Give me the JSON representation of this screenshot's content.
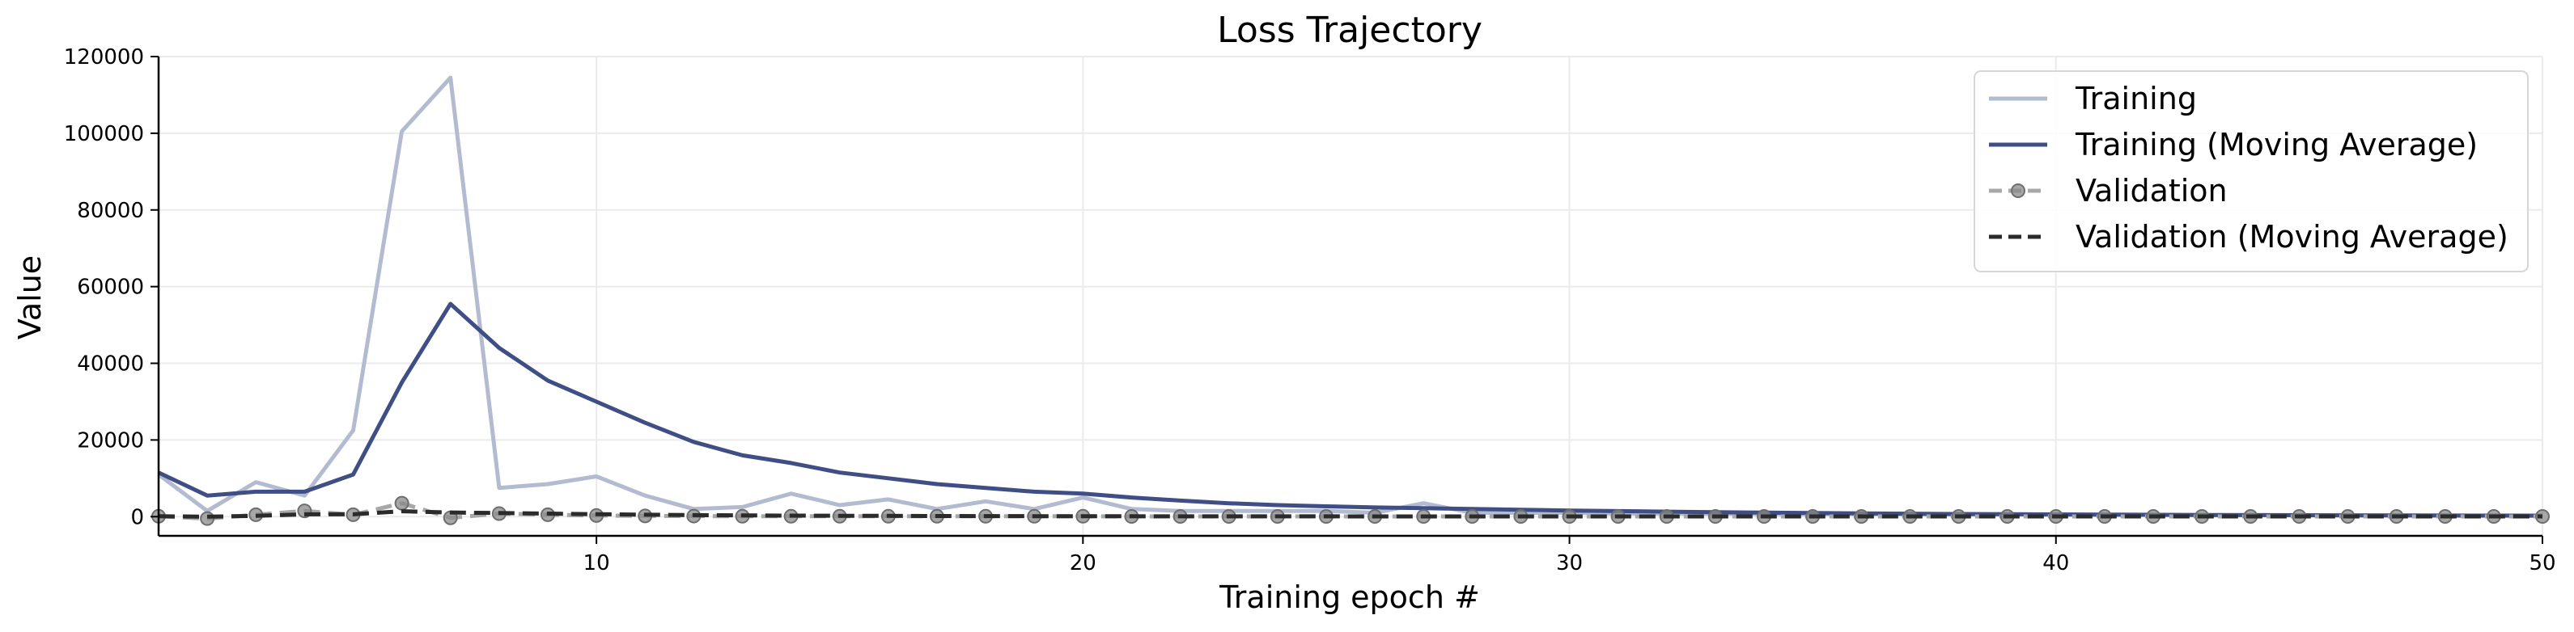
{
  "chart_data": {
    "type": "line",
    "title": "Loss Trajectory",
    "xlabel": "Training epoch #",
    "ylabel": "Value",
    "xlim": [
      1,
      50
    ],
    "ylim": [
      -5000,
      120000
    ],
    "xticks": [
      10,
      20,
      30,
      40,
      50
    ],
    "yticks": [
      0,
      20000,
      40000,
      60000,
      80000,
      100000,
      120000
    ],
    "grid": true,
    "legend_position": "top-right",
    "x": [
      1,
      2,
      3,
      4,
      5,
      6,
      7,
      8,
      9,
      10,
      11,
      12,
      13,
      14,
      15,
      16,
      17,
      18,
      19,
      20,
      21,
      22,
      23,
      24,
      25,
      26,
      27,
      28,
      29,
      30,
      31,
      32,
      33,
      34,
      35,
      36,
      37,
      38,
      39,
      40,
      41,
      42,
      43,
      44,
      45,
      46,
      47,
      48,
      49,
      50
    ],
    "series": [
      {
        "name": "Training",
        "color": "#b3bbd0",
        "style": "solid",
        "markers": false,
        "values": [
          11000,
          1500,
          9000,
          5500,
          22500,
          100500,
          114500,
          7500,
          8500,
          10500,
          5500,
          2000,
          2500,
          6000,
          3000,
          4500,
          2000,
          4000,
          2000,
          5000,
          2000,
          1500,
          1500,
          1500,
          1500,
          1000,
          3500,
          1000,
          1000,
          1000,
          800,
          800,
          800,
          700,
          700,
          700,
          600,
          600,
          600,
          500,
          500,
          500,
          400,
          400,
          400,
          400,
          300,
          300,
          300,
          300
        ]
      },
      {
        "name": "Training (Moving Average)",
        "color": "#3f4f86",
        "style": "solid",
        "markers": false,
        "values": [
          11500,
          5500,
          6500,
          6500,
          11000,
          35000,
          55500,
          44000,
          35500,
          30000,
          24500,
          19500,
          16000,
          14000,
          11500,
          10000,
          8500,
          7500,
          6500,
          6000,
          5000,
          4200,
          3500,
          3000,
          2700,
          2400,
          2200,
          2000,
          1800,
          1600,
          1450,
          1300,
          1150,
          1050,
          950,
          850,
          780,
          700,
          640,
          580,
          530,
          480,
          440,
          400,
          370,
          340,
          310,
          290,
          270,
          250
        ]
      },
      {
        "name": "Validation",
        "color": "#a8a8a8",
        "style": "dashed",
        "markers": true,
        "values": [
          100,
          -500,
          500,
          1500,
          500,
          3500,
          -300,
          800,
          500,
          300,
          200,
          150,
          100,
          100,
          100,
          100,
          100,
          100,
          100,
          100,
          50,
          50,
          50,
          50,
          50,
          50,
          50,
          50,
          50,
          50,
          50,
          50,
          50,
          50,
          50,
          50,
          50,
          50,
          50,
          50,
          50,
          50,
          50,
          50,
          50,
          50,
          50,
          50,
          50,
          50
        ]
      },
      {
        "name": "Validation (Moving Average)",
        "color": "#2b2b2b",
        "style": "dashed",
        "markers": false,
        "values": [
          100,
          0,
          200,
          600,
          600,
          1400,
          1100,
          950,
          800,
          650,
          500,
          400,
          330,
          270,
          230,
          200,
          170,
          150,
          130,
          120,
          100,
          90,
          80,
          75,
          70,
          65,
          60,
          58,
          56,
          55,
          54,
          53,
          52,
          52,
          51,
          51,
          51,
          50,
          50,
          50,
          50,
          50,
          50,
          50,
          50,
          50,
          50,
          50,
          50,
          50
        ]
      }
    ]
  }
}
